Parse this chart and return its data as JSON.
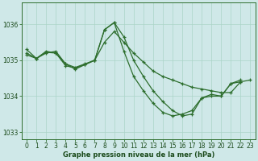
{
  "background_color": "#cfe8e8",
  "grid_color": "#aad4c8",
  "line_color": "#2d6e2d",
  "xlabel": "Graphe pression niveau de la mer (hPa)",
  "xlim": [
    -0.5,
    23.5
  ],
  "ylim": [
    1032.8,
    1036.6
  ],
  "yticks": [
    1033,
    1034,
    1035,
    1036
  ],
  "xticks": [
    0,
    1,
    2,
    3,
    4,
    5,
    6,
    7,
    8,
    9,
    10,
    11,
    12,
    13,
    14,
    15,
    16,
    17,
    18,
    19,
    20,
    21,
    22,
    23
  ],
  "series": [
    {
      "x": [
        0,
        1,
        2,
        3,
        4,
        5,
        6,
        7,
        8,
        9,
        10,
        11,
        12,
        13,
        14,
        15,
        16,
        17,
        18,
        19,
        20,
        21,
        22,
        23
      ],
      "y": [
        1035.15,
        1035.05,
        1035.25,
        1035.2,
        1034.9,
        1034.8,
        1034.9,
        1035.0,
        1035.5,
        1035.8,
        1035.5,
        1035.2,
        1034.95,
        1034.7,
        1034.55,
        1034.45,
        1034.35,
        1034.25,
        1034.2,
        1034.15,
        1034.1,
        1034.1,
        1034.4,
        1034.45
      ]
    },
    {
      "x": [
        0,
        1,
        2,
        3,
        4,
        5,
        6,
        7,
        8,
        9,
        10,
        11,
        12,
        13,
        14,
        15,
        16,
        17,
        18,
        19,
        20,
        21,
        22,
        23
      ],
      "y": [
        1035.3,
        1035.05,
        1035.2,
        1035.25,
        1034.9,
        1034.75,
        1034.88,
        1035.0,
        1035.85,
        1036.05,
        1035.25,
        1034.55,
        1034.15,
        1033.8,
        1033.55,
        1033.45,
        1033.5,
        1033.6,
        1033.95,
        1034.0,
        1034.0,
        1034.35,
        1034.4,
        null
      ]
    },
    {
      "x": [
        0,
        1,
        2,
        3,
        4,
        5,
        6,
        7,
        8,
        9,
        10,
        11,
        12,
        13,
        14,
        15,
        16,
        17,
        18,
        19,
        20,
        21,
        22,
        23
      ],
      "y": [
        1035.2,
        1035.05,
        1035.22,
        1035.2,
        1034.85,
        1034.78,
        1034.88,
        1035.0,
        1035.85,
        1036.05,
        1035.65,
        1035.0,
        1034.55,
        1034.15,
        1033.85,
        1033.6,
        1033.45,
        1033.5,
        1033.95,
        1034.05,
        1034.0,
        1034.35,
        1034.45,
        null
      ]
    }
  ]
}
